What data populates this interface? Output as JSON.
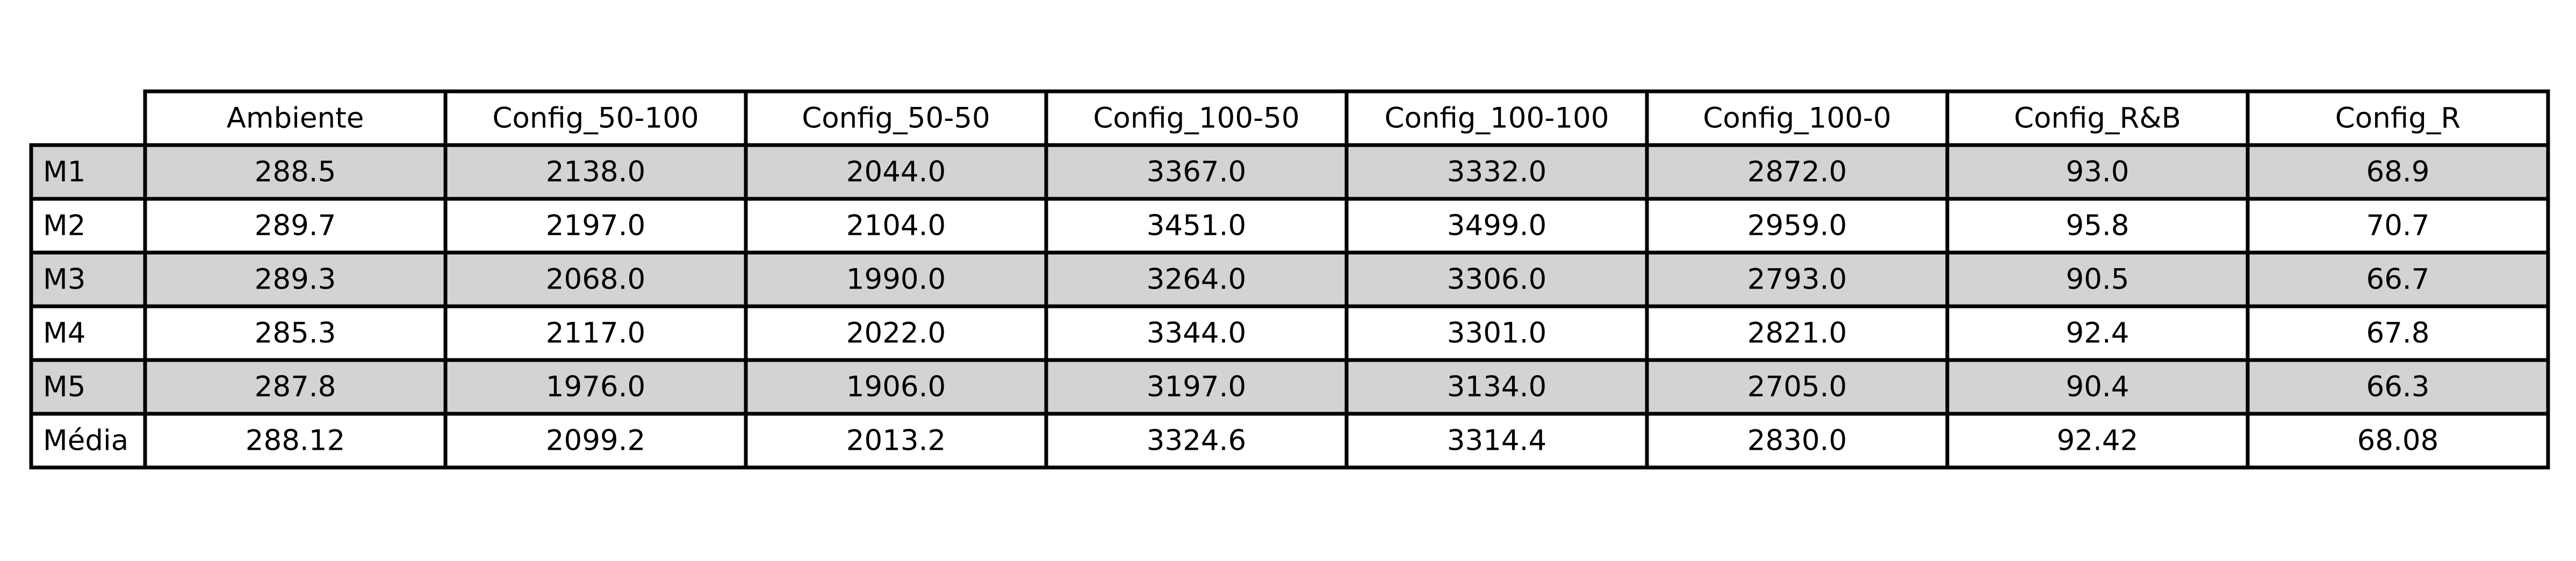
{
  "chart_data": {
    "type": "table",
    "columns": [
      "Ambiente",
      "Config_50-100",
      "Config_50-50",
      "Config_100-50",
      "Config_100-100",
      "Config_100-0",
      "Config_R&B",
      "Config_R"
    ],
    "rows": [
      {
        "label": "M1",
        "values": [
          "288.5",
          "2138.0",
          "2044.0",
          "3367.0",
          "3332.0",
          "2872.0",
          "93.0",
          "68.9"
        ]
      },
      {
        "label": "M2",
        "values": [
          "289.7",
          "2197.0",
          "2104.0",
          "3451.0",
          "3499.0",
          "2959.0",
          "95.8",
          "70.7"
        ]
      },
      {
        "label": "M3",
        "values": [
          "289.3",
          "2068.0",
          "1990.0",
          "3264.0",
          "3306.0",
          "2793.0",
          "90.5",
          "66.7"
        ]
      },
      {
        "label": "M4",
        "values": [
          "285.3",
          "2117.0",
          "2022.0",
          "3344.0",
          "3301.0",
          "2821.0",
          "92.4",
          "67.8"
        ]
      },
      {
        "label": "M5",
        "values": [
          "287.8",
          "1976.0",
          "1906.0",
          "3197.0",
          "3134.0",
          "2705.0",
          "90.4",
          "66.3"
        ]
      },
      {
        "label": "Média",
        "values": [
          "288.12",
          "2099.2",
          "2013.2",
          "3324.6",
          "3314.4",
          "2830.0",
          "92.42",
          "68.08"
        ]
      }
    ],
    "shaded_rows": [
      "M1",
      "M3",
      "M5"
    ],
    "colors": {
      "shaded_row": "#d3d3d3",
      "plain_row": "#ffffff",
      "border": "#000000"
    }
  }
}
